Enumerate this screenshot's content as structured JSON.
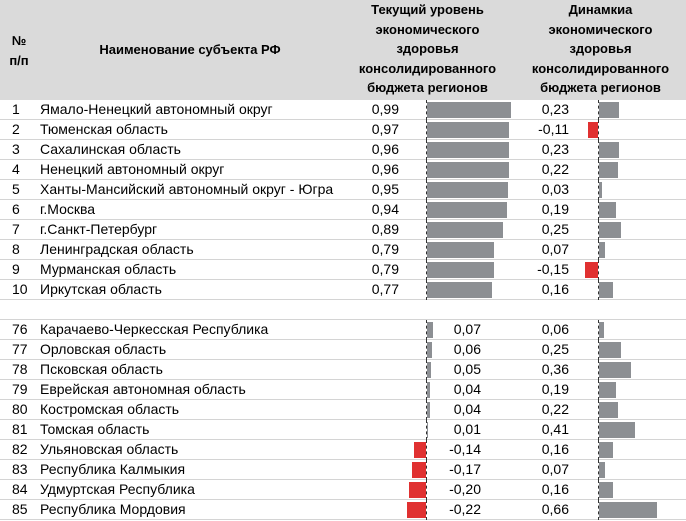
{
  "header": {
    "num": [
      "№",
      "п/п"
    ],
    "name": "Наименование субъекта РФ",
    "current": [
      "Текущий уровень",
      "экономического",
      "здоровья",
      "консолидированного",
      "бюджета регионов"
    ],
    "dynamics": [
      "Динамкиа",
      "экономического",
      "здоровья",
      "консолидированного",
      "бюджета  регионов"
    ]
  },
  "colors": {
    "positive_bar": "#8c8f93",
    "negative_bar": "#e03131",
    "header_bg": "#dadada"
  },
  "top_rows": [
    {
      "num": "1",
      "name": "Ямало-Ненецкий автономный округ",
      "current": "0,99",
      "dynamics": "0,23"
    },
    {
      "num": "2",
      "name": "Тюменская область",
      "current": "0,97",
      "dynamics": "-0,11"
    },
    {
      "num": "3",
      "name": "Сахалинская область",
      "current": "0,96",
      "dynamics": "0,23"
    },
    {
      "num": "4",
      "name": "Ненецкий автономный округ",
      "current": "0,96",
      "dynamics": "0,22"
    },
    {
      "num": "5",
      "name": "Ханты-Мансийский автономный округ - Югра",
      "current": "0,95",
      "dynamics": "0,03"
    },
    {
      "num": "6",
      "name": "г.Москва",
      "current": "0,94",
      "dynamics": "0,19"
    },
    {
      "num": "7",
      "name": "г.Санкт-Петербург",
      "current": "0,89",
      "dynamics": "0,25"
    },
    {
      "num": "8",
      "name": "Ленинградская область",
      "current": "0,79",
      "dynamics": "0,07"
    },
    {
      "num": "9",
      "name": "Мурманская область",
      "current": "0,79",
      "dynamics": "-0,15"
    },
    {
      "num": "10",
      "name": "Иркутская область",
      "current": "0,77",
      "dynamics": "0,16"
    }
  ],
  "bottom_rows": [
    {
      "num": "76",
      "name": "Карачаево-Черкесская Республика",
      "current": "0,07",
      "dynamics": "0,06"
    },
    {
      "num": "77",
      "name": "Орловская область",
      "current": "0,06",
      "dynamics": "0,25"
    },
    {
      "num": "78",
      "name": "Псковская область",
      "current": "0,05",
      "dynamics": "0,36"
    },
    {
      "num": "79",
      "name": "Еврейская автономная область",
      "current": "0,04",
      "dynamics": "0,19"
    },
    {
      "num": "80",
      "name": "Костромская область",
      "current": "0,04",
      "dynamics": "0,22"
    },
    {
      "num": "81",
      "name": "Томская область",
      "current": "0,01",
      "dynamics": "0,41"
    },
    {
      "num": "82",
      "name": "Ульяновская область",
      "current": "-0,14",
      "dynamics": "0,16"
    },
    {
      "num": "83",
      "name": "Республика Калмыкия",
      "current": "-0,17",
      "dynamics": "0,07"
    },
    {
      "num": "84",
      "name": "Удмуртская Республика",
      "current": "-0,20",
      "dynamics": "0,16"
    },
    {
      "num": "85",
      "name": "Республика Мордовия",
      "current": "-0,22",
      "dynamics": "0,66"
    }
  ]
}
